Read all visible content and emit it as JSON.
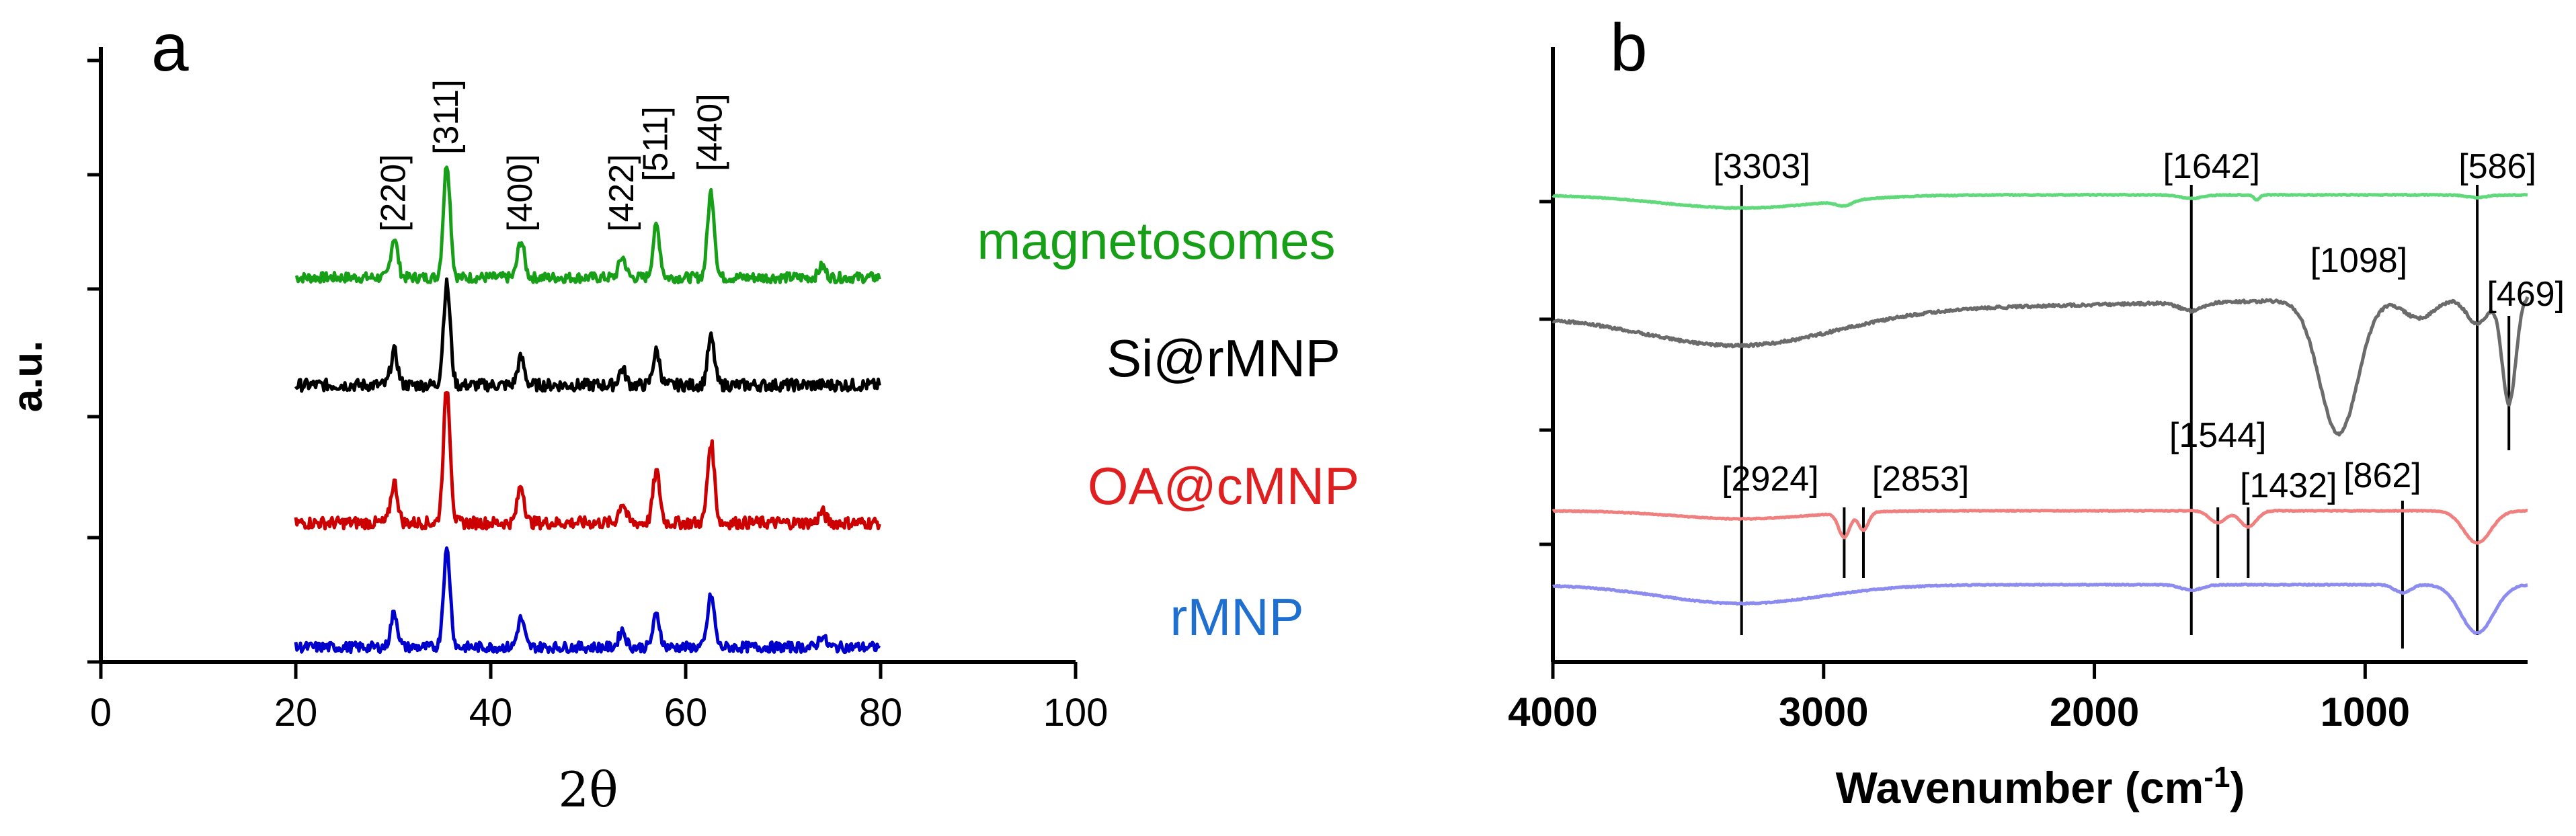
{
  "chart_data": [
    {
      "panel": "a",
      "type": "line",
      "title": "",
      "xlabel": "2θ",
      "ylabel": "a.u.",
      "xlim": [
        0,
        100
      ],
      "xticks": [
        "0",
        "20",
        "40",
        "60",
        "80",
        "100"
      ],
      "grid": false,
      "x_range_data": [
        20,
        80
      ],
      "peak_labels": [
        {
          "label": "[220]",
          "x": 30.1
        },
        {
          "label": "[311]",
          "x": 35.5
        },
        {
          "label": "[400]",
          "x": 43.1
        },
        {
          "label": "[422]",
          "x": 53.5
        },
        {
          "label": "[511]",
          "x": 57.0
        },
        {
          "label": "[440]",
          "x": 62.6
        }
      ],
      "series": [
        {
          "name": "magnetosomes",
          "color": "#17a017",
          "peaks": [
            [
              30.1,
              0.35
            ],
            [
              35.5,
              1.0
            ],
            [
              43.1,
              0.32
            ],
            [
              53.5,
              0.18
            ],
            [
              57.0,
              0.45
            ],
            [
              62.6,
              0.75
            ],
            [
              74.0,
              0.1
            ]
          ]
        },
        {
          "name": "Si@rMNP",
          "color": "#000000",
          "peaks": [
            [
              30.1,
              0.25
            ],
            [
              35.5,
              0.75
            ],
            [
              43.1,
              0.2
            ],
            [
              53.5,
              0.12
            ],
            [
              57.0,
              0.25
            ],
            [
              62.6,
              0.35
            ]
          ]
        },
        {
          "name": "OA@cMNP",
          "color": "#cc0000",
          "peaks": [
            [
              30.1,
              0.3
            ],
            [
              35.5,
              1.0
            ],
            [
              43.1,
              0.28
            ],
            [
              53.5,
              0.15
            ],
            [
              57.0,
              0.38
            ],
            [
              62.6,
              0.6
            ],
            [
              74.0,
              0.08
            ]
          ]
        },
        {
          "name": "rMNP",
          "color": "#0000cc",
          "peaks": [
            [
              30.1,
              0.3
            ],
            [
              35.5,
              0.85
            ],
            [
              43.1,
              0.25
            ],
            [
              53.5,
              0.15
            ],
            [
              57.0,
              0.28
            ],
            [
              62.6,
              0.45
            ],
            [
              74.0,
              0.1
            ]
          ]
        }
      ]
    },
    {
      "panel": "b",
      "type": "line",
      "title": "",
      "xlabel": "Wavenumber (cm",
      "xlabel_superscript": "-1",
      "xlabel_close": ")",
      "ylabel": "",
      "xlim": [
        4000,
        400
      ],
      "xticks": [
        "4000",
        "3000",
        "2000",
        "1000"
      ],
      "grid": false,
      "top_labels": [
        {
          "label": "[3303]",
          "x": 3303
        },
        {
          "label": "[1642]",
          "x": 1642
        },
        {
          "label": "[586]",
          "x": 586
        }
      ],
      "mid_labels": [
        {
          "label": "[1098]",
          "x": 1098
        },
        {
          "label": "[469]",
          "x": 469
        }
      ],
      "low_labels": [
        {
          "label": "[2924]",
          "x": 2924
        },
        {
          "label": "[2853]",
          "x": 2853
        },
        {
          "label": "[1544]",
          "x": 1544
        },
        {
          "label": "[1432]",
          "x": 1432
        },
        {
          "label": "[862]",
          "x": 862
        }
      ],
      "series": [
        {
          "name": "magnetosomes",
          "color": "#5fd97a",
          "bands": [
            [
              3303,
              0.3,
              300
            ],
            [
              2924,
              0.12,
              30
            ],
            [
              1642,
              0.08,
              40
            ],
            [
              1400,
              0.12,
              10
            ],
            [
              586,
              0.06,
              40
            ]
          ]
        },
        {
          "name": "Si@rMNP",
          "color": "#6b6b6b",
          "bands": [
            [
              3303,
              0.25,
              350
            ],
            [
              1642,
              0.06,
              40
            ],
            [
              1098,
              1.0,
              70
            ],
            [
              800,
              0.15,
              60
            ],
            [
              586,
              0.2,
              40
            ],
            [
              469,
              0.8,
              25
            ]
          ]
        },
        {
          "name": "OA@cMNP",
          "color": "#f08080",
          "bands": [
            [
              3303,
              0.2,
              250
            ],
            [
              2924,
              0.6,
              20
            ],
            [
              2853,
              0.45,
              18
            ],
            [
              1544,
              0.3,
              30
            ],
            [
              1432,
              0.4,
              30
            ],
            [
              586,
              0.8,
              50
            ]
          ]
        },
        {
          "name": "rMNP",
          "color": "#8c8cf0",
          "bands": [
            [
              3303,
              0.35,
              300
            ],
            [
              1642,
              0.1,
              40
            ],
            [
              862,
              0.15,
              30
            ],
            [
              586,
              0.9,
              60
            ]
          ]
        }
      ]
    }
  ]
}
